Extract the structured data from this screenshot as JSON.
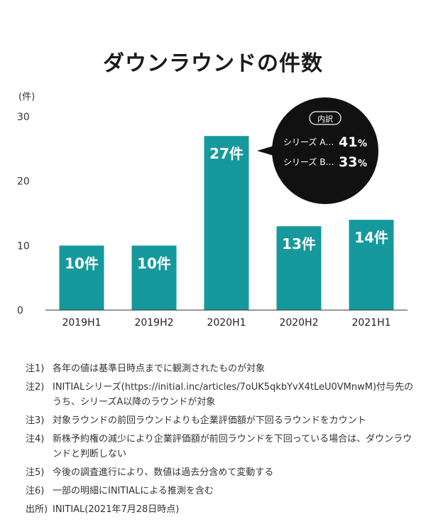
{
  "title": "ダウンラウンドの件数",
  "chart_data": {
    "type": "bar",
    "title": "ダウンラウンドの件数",
    "y_unit": "(件)",
    "categories": [
      "2019H1",
      "2019H2",
      "2020H1",
      "2020H2",
      "2021H1"
    ],
    "values": [
      10,
      10,
      27,
      13,
      14
    ],
    "value_labels": [
      "10件",
      "10件",
      "27件",
      "13件",
      "14件"
    ],
    "y_ticks": [
      0,
      10,
      20,
      30
    ],
    "ylim": [
      0,
      30
    ],
    "grid": false,
    "bar_color": "#16999c",
    "annotation": {
      "heading": "内訳",
      "rows": [
        {
          "label": "シリーズ A…",
          "value": "41",
          "unit": "%"
        },
        {
          "label": "シリーズ B…",
          "value": "33",
          "unit": "%"
        }
      ]
    }
  },
  "notes": [
    {
      "label": "注1)",
      "text": "各年の値は基準日時点までに観測されたものが対象"
    },
    {
      "label": "注2)",
      "text": "INITIALシリーズ(https://initial.inc/articles/7oUK5qkbYvX4tLeU0VMnwM)付与先のうち、シリーズA以降のラウンドが対象"
    },
    {
      "label": "注3)",
      "text": "対象ラウンドの前回ラウンドよりも企業評価額が下回るラウンドをカウント"
    },
    {
      "label": "注4)",
      "text": "新株予約権の減少により企業評価額が前回ラウンドを下回っている場合は、ダウンラウンドと判断しない"
    },
    {
      "label": "注5)",
      "text": "今後の調査進行により、数値は過去分含めて変動する"
    },
    {
      "label": "注6)",
      "text": "一部の明細にINITIALによる推測を含む"
    },
    {
      "label": "出所)",
      "text": "INITIAL(2021年7月28日時点)"
    }
  ]
}
